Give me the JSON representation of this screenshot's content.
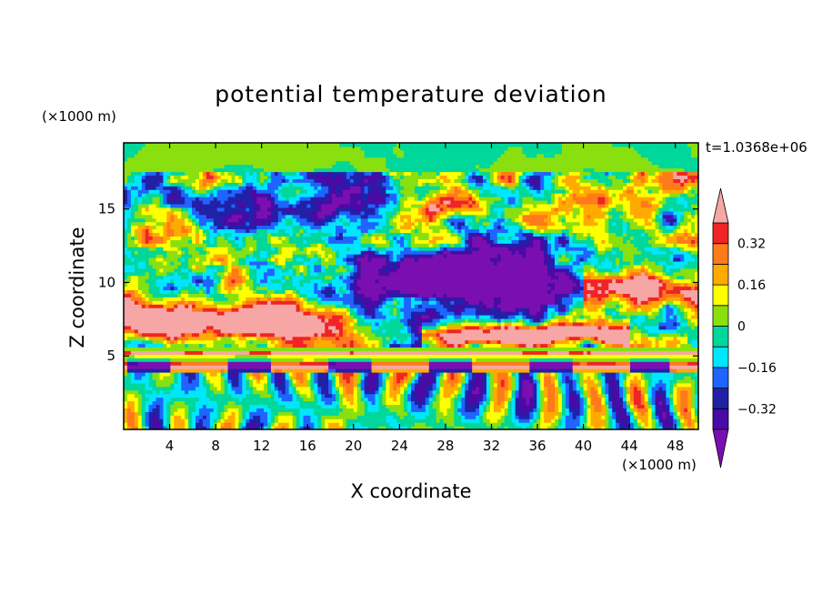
{
  "chart_data": {
    "type": "heatmap",
    "title": "potential temperature deviation",
    "xlabel": "X coordinate",
    "ylabel": "Z coordinate",
    "x_unit": "(×1000 m)",
    "y_unit": "(×1000 m)",
    "time_label": "t=1.0368e+06",
    "xlim": [
      0,
      50
    ],
    "ylim": [
      0,
      19.5
    ],
    "x_ticks": [
      4,
      8,
      12,
      16,
      20,
      24,
      28,
      32,
      36,
      40,
      44,
      48
    ],
    "y_ticks": [
      5,
      10,
      15
    ],
    "colorbar": {
      "levels": [
        -0.4,
        -0.32,
        -0.24,
        -0.16,
        -0.08,
        0,
        0.08,
        0.16,
        0.24,
        0.32,
        0.4
      ],
      "colors": [
        "#7a0fb1",
        "#4a0aa5",
        "#2121a8",
        "#1f64ff",
        "#00e6ff",
        "#00d79a",
        "#8ae00f",
        "#ffff00",
        "#ffaa00",
        "#ff7a1a",
        "#f02424",
        "#f7a6a6"
      ],
      "tick_labels": [
        "0.32",
        "0.16",
        "0",
        "−0.16",
        "−0.32"
      ],
      "tick_values": [
        0.32,
        0.16,
        0,
        -0.16,
        -0.32
      ],
      "extend": "both"
    },
    "field_structure": [
      {
        "z_range": [
          0,
          4
        ],
        "pattern": "vertical columns of alternating sign"
      },
      {
        "z_range": [
          4,
          5.5
        ],
        "pattern": "thin horizontal bands"
      },
      {
        "z_range": [
          5.5,
          12
        ],
        "pattern": "warm layer at left, cold core right of center"
      },
      {
        "z_range": [
          12,
          17.5
        ],
        "pattern": "turbulent alternating patches"
      },
      {
        "z_range": [
          17.5,
          19.5
        ],
        "pattern": "near-zero green"
      }
    ]
  }
}
